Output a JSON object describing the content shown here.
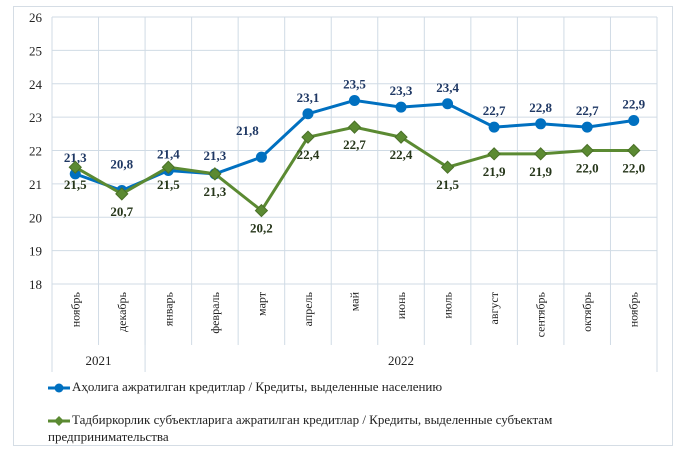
{
  "chart_data": {
    "type": "line",
    "categories": [
      "ноябрь",
      "декабрь",
      "январь",
      "февраль",
      "март",
      "апрель",
      "май",
      "июнь",
      "июль",
      "август",
      "сентябрь",
      "октябрь",
      "ноябрь"
    ],
    "year_groups": [
      {
        "label": "2021",
        "span": 2
      },
      {
        "label": "2022",
        "span": 11
      }
    ],
    "ylim": [
      18,
      26
    ],
    "yticks": [
      18,
      19,
      20,
      21,
      22,
      23,
      24,
      25,
      26
    ],
    "grid": true,
    "legend_position": "bottom",
    "series": [
      {
        "name": "Аҳолига ажратилган кредитлар / Кредиты, выделенные населению",
        "color": "#0070c0",
        "marker": "circle",
        "values": [
          21.3,
          20.8,
          21.4,
          21.3,
          21.8,
          23.1,
          23.5,
          23.3,
          23.4,
          22.7,
          22.8,
          22.7,
          22.9
        ],
        "labels": [
          "21,3",
          "20,8",
          "21,4",
          "21,3",
          "21,8",
          "23,1",
          "23,5",
          "23,3",
          "23,4",
          "22,7",
          "22,8",
          "22,7",
          "22,9"
        ]
      },
      {
        "name": "Тадбиркорлик субъектларига ажратилган кредитлар / Кредиты, выделенные субъектам предпринимательства",
        "color": "#5b8a32",
        "marker": "diamond",
        "values": [
          21.5,
          20.7,
          21.5,
          21.3,
          20.2,
          22.4,
          22.7,
          22.4,
          21.5,
          21.9,
          21.9,
          22.0,
          22.0
        ],
        "labels": [
          "21,5",
          "20,7",
          "21,5",
          "21,3",
          "20,2",
          "22,4",
          "22,7",
          "22,4",
          "21,5",
          "21,9",
          "21,9",
          "22,0",
          "22,0"
        ]
      }
    ]
  }
}
